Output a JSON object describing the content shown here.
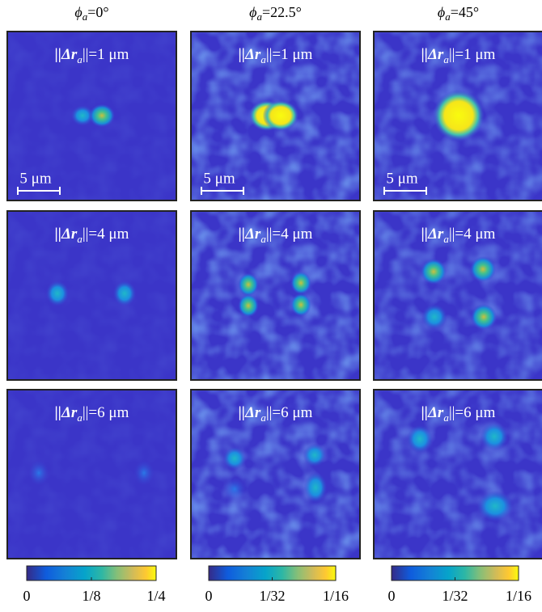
{
  "columns": [
    {
      "header": {
        "symbol": "ϕ",
        "sub": "a",
        "rest": "=0°"
      },
      "colorbar": {
        "lim": [
          0,
          0.25
        ],
        "ticks": [
          0,
          {
            "value": 0.125,
            "label": "1/8"
          },
          {
            "value": 0.25,
            "label": "1/4"
          }
        ]
      },
      "panels": [
        {
          "label": {
            "pre": "||Δr",
            "sub": "a",
            "post": "||=1 μm"
          },
          "scale_bar": "5 μm"
        },
        {
          "label": {
            "pre": "||Δr",
            "sub": "a",
            "post": "||=4 μm"
          }
        },
        {
          "label": {
            "pre": "||Δr",
            "sub": "a",
            "post": "||=6 μm"
          }
        }
      ]
    },
    {
      "header": {
        "symbol": "ϕ",
        "sub": "a",
        "rest": "=22.5°"
      },
      "colorbar": {
        "lim": [
          0,
          0.0625
        ],
        "ticks": [
          0,
          {
            "value": 0.03125,
            "label": "1/32"
          },
          {
            "value": 0.0625,
            "label": "1/16"
          }
        ]
      },
      "panels": [
        {
          "label": {
            "pre": "||Δr",
            "sub": "a",
            "post": "||=1 μm"
          },
          "scale_bar": "5 μm"
        },
        {
          "label": {
            "pre": "||Δr",
            "sub": "a",
            "post": "||=4 μm"
          }
        },
        {
          "label": {
            "pre": "||Δr",
            "sub": "a",
            "post": "||=6 μm"
          }
        }
      ]
    },
    {
      "header": {
        "symbol": "ϕ",
        "sub": "a",
        "rest": "=45°"
      },
      "colorbar": {
        "lim": [
          0,
          0.0625
        ],
        "ticks": [
          0,
          {
            "value": 0.03125,
            "label": "1/32"
          },
          {
            "value": 0.0625,
            "label": "1/16"
          }
        ]
      },
      "panels": [
        {
          "label": {
            "pre": "||Δr",
            "sub": "a",
            "post": "||=1 μm"
          },
          "scale_bar": "5 μm"
        },
        {
          "label": {
            "pre": "||Δr",
            "sub": "a",
            "post": "||=4 μm"
          }
        },
        {
          "label": {
            "pre": "||Δr",
            "sub": "a",
            "post": "||=6 μm"
          }
        }
      ]
    }
  ]
}
